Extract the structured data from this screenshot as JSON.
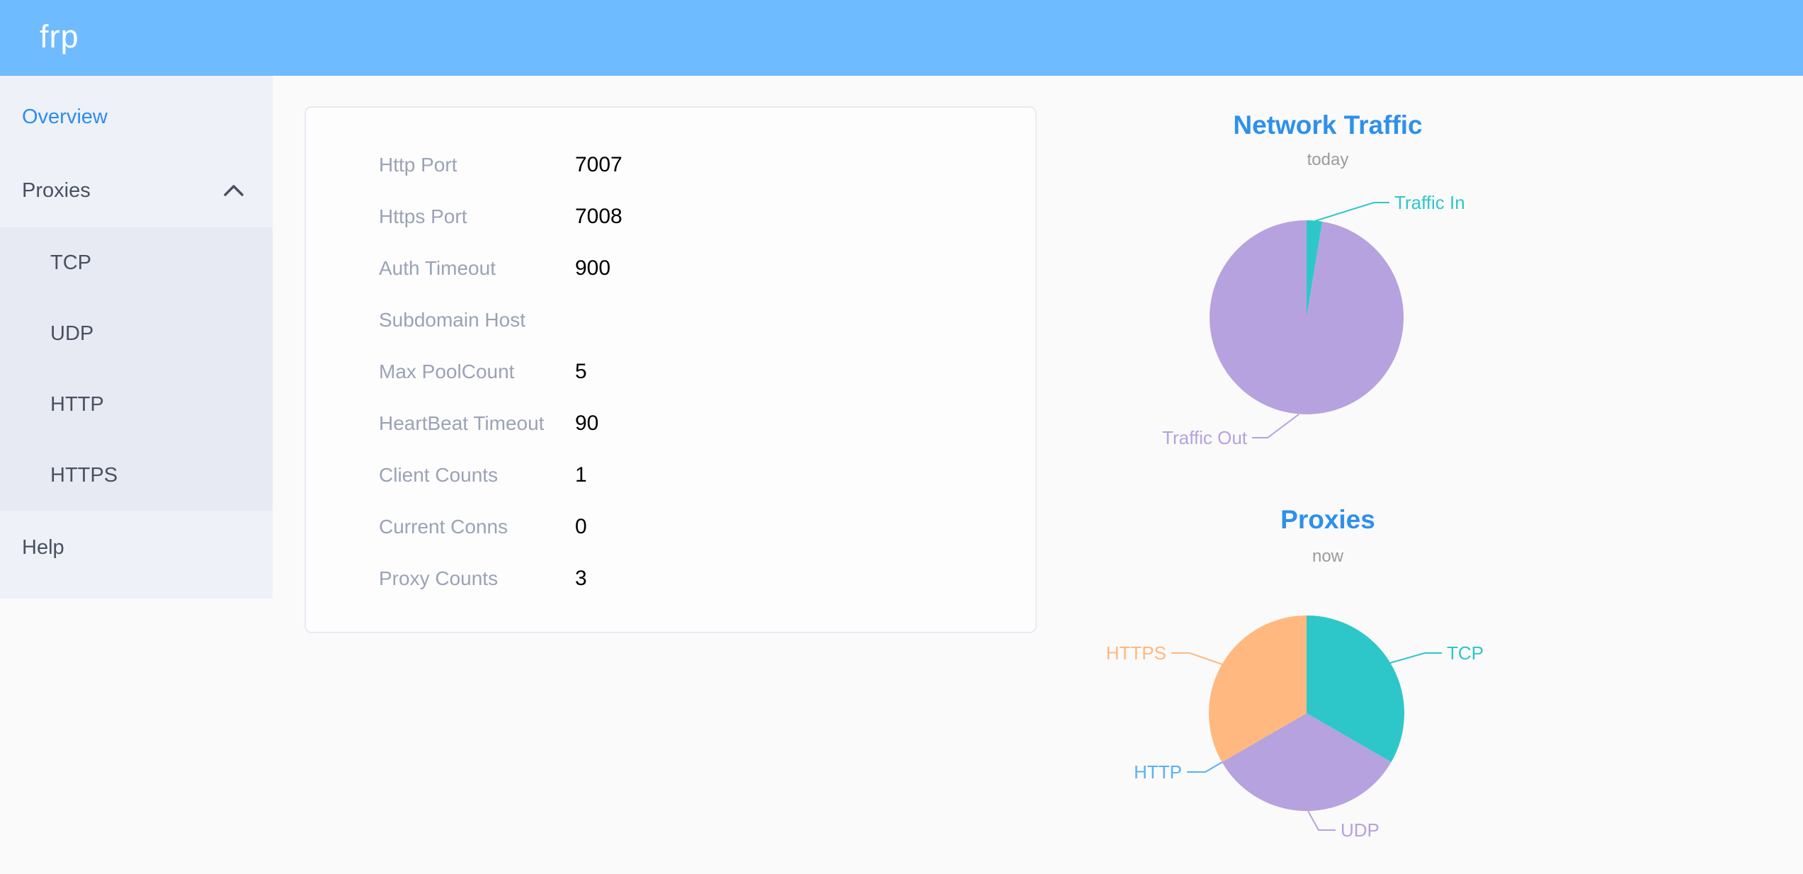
{
  "header": {
    "logo": "frp"
  },
  "colors": {
    "header_bg": "#6fbbff",
    "primary": "#2d8cf0",
    "chart_title": "#2e90ea",
    "teal": "#2ec7c9",
    "purple": "#b6a2de",
    "blue": "#5ab1ef",
    "orange": "#ffb980"
  },
  "sidebar": {
    "items": [
      {
        "label": "Overview",
        "active": true
      },
      {
        "label": "Proxies",
        "expanded": true,
        "children": {
          "0": "TCP",
          "1": "UDP",
          "2": "HTTP",
          "3": "HTTPS"
        }
      },
      {
        "label": "Help"
      }
    ]
  },
  "overview_card": {
    "rows": [
      {
        "label": "Http Port",
        "value": "7007"
      },
      {
        "label": "Https Port",
        "value": "7008"
      },
      {
        "label": "Auth Timeout",
        "value": "900"
      },
      {
        "label": "Subdomain Host",
        "value": ""
      },
      {
        "label": "Max PoolCount",
        "value": "5"
      },
      {
        "label": "HeartBeat Timeout",
        "value": "90"
      },
      {
        "label": "Client Counts",
        "value": "1"
      },
      {
        "label": "Current Conns",
        "value": "0"
      },
      {
        "label": "Proxy Counts",
        "value": "3"
      }
    ]
  },
  "chart_data": [
    {
      "type": "pie",
      "title": "Network Traffic",
      "subtitle": "today",
      "legend_position": "none",
      "units": "percent (estimated from slice angles)",
      "slices": [
        {
          "label": "Traffic In",
          "value": 2.6,
          "color": "#2ec7c9"
        },
        {
          "label": "Traffic Out",
          "value": 97.4,
          "color": "#b6a2de"
        }
      ]
    },
    {
      "type": "pie",
      "title": "Proxies",
      "subtitle": "now",
      "legend_position": "none",
      "units": "proxy count",
      "slices": [
        {
          "label": "TCP",
          "value": 1,
          "color": "#2ec7c9"
        },
        {
          "label": "UDP",
          "value": 1,
          "color": "#b6a2de"
        },
        {
          "label": "HTTP",
          "value": 0,
          "color": "#5ab1ef"
        },
        {
          "label": "HTTPS",
          "value": 1,
          "color": "#ffb980"
        }
      ]
    }
  ]
}
